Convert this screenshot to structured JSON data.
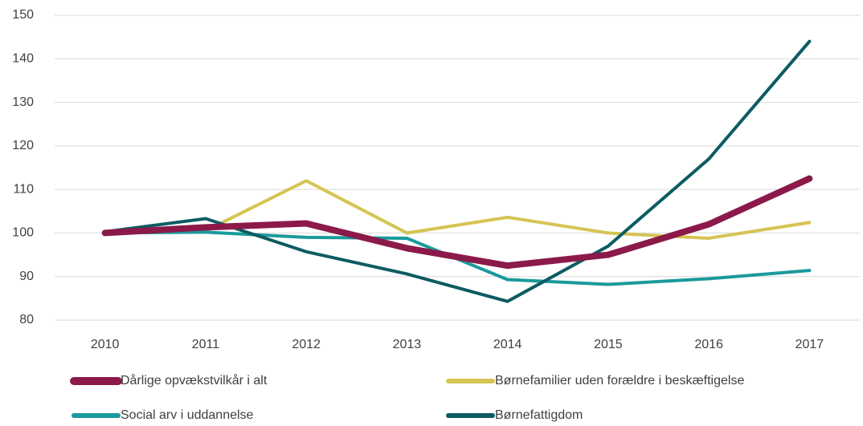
{
  "chart_data": {
    "type": "line",
    "categories": [
      "2010",
      "2011",
      "2012",
      "2013",
      "2014",
      "2015",
      "2016",
      "2017"
    ],
    "series": [
      {
        "name": "Dårlige opvækstvilkår i alt",
        "color": "#8b1a4a",
        "values": [
          100,
          101.3,
          102.2,
          96.5,
          92.5,
          95,
          102,
          112.5
        ]
      },
      {
        "name": "Børnefamilier uden forældre i beskæftigelse",
        "color": "#d6c453",
        "values": [
          100,
          100.5,
          112,
          100,
          103.6,
          100,
          98.8,
          102.4
        ]
      },
      {
        "name": "Social arv i uddannelse",
        "color": "#1a9a9c",
        "values": [
          100,
          100.2,
          99,
          98.8,
          89.3,
          88.2,
          89.5,
          91.4
        ]
      },
      {
        "name": "Børnefattigdom",
        "color": "#0d5b63",
        "values": [
          100.3,
          103.3,
          95.7,
          90.6,
          84.3,
          97,
          117,
          144
        ]
      }
    ],
    "ylim": [
      80,
      150
    ],
    "yticks": [
      80,
      90,
      100,
      110,
      120,
      130,
      140,
      150
    ],
    "grid": true
  }
}
